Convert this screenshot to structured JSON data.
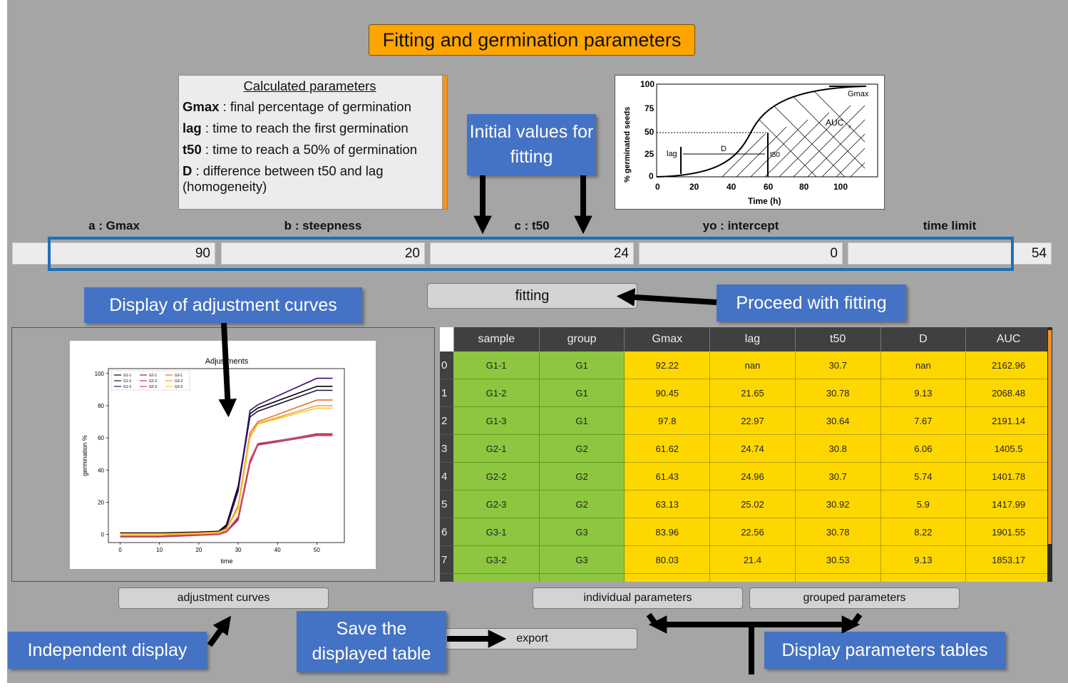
{
  "title": "Fitting and germination parameters",
  "info": {
    "heading": "Calculated parameters",
    "rows": [
      {
        "key": "Gmax",
        "desc": " : final percentage of germination"
      },
      {
        "key": "lag",
        "desc": " : time to reach the first germination"
      },
      {
        "key": "t50",
        "desc": " : time to reach a 50% of germination"
      },
      {
        "key": "D",
        "desc": " : difference between t50 and lag (homogeneity)"
      }
    ]
  },
  "reference_chart": {
    "ylabel": "% germinated seeds",
    "xlabel": "Time (h)",
    "yticks": [
      "0",
      "25",
      "50",
      "75",
      "100"
    ],
    "xticks": [
      "0",
      "20",
      "40",
      "60",
      "80",
      "100"
    ],
    "labels": {
      "gmax": "Gmax",
      "auc": "AUC",
      "auc_sub": "x",
      "lag": "lag",
      "d": "D",
      "t50": "t50"
    }
  },
  "callouts": {
    "initial": "Initial values for fitting",
    "display_curves": "Display of adjustment curves",
    "proceed": "Proceed with fitting",
    "independent": "Independent display",
    "save": "Save the displayed table",
    "display_tables": "Display parameters tables"
  },
  "params": {
    "labels": [
      "a : Gmax",
      "b : steepness",
      "c : t50",
      "yo : intercept",
      "time limit"
    ],
    "values": [
      "90",
      "20",
      "24",
      "0",
      "54"
    ]
  },
  "buttons": {
    "fitting": "fitting",
    "adjustment_curves": "adjustment curves",
    "individual": "individual parameters",
    "grouped": "grouped parameters",
    "export": "export"
  },
  "chart_data": {
    "type": "line",
    "title": "Adjustments",
    "xlabel": "time",
    "ylabel": "germination %",
    "xlim": [
      -3,
      57
    ],
    "ylim": [
      -5,
      103
    ],
    "xticks": [
      0,
      10,
      20,
      30,
      40,
      50
    ],
    "yticks": [
      0,
      20,
      40,
      60,
      80,
      100
    ],
    "legend": "top-left",
    "series": [
      {
        "name": "G1-1",
        "color": "#000000",
        "points": [
          [
            0,
            1
          ],
          [
            10,
            1
          ],
          [
            20,
            1.5
          ],
          [
            25,
            2
          ],
          [
            27,
            6
          ],
          [
            30,
            30
          ],
          [
            33,
            75
          ],
          [
            35,
            78.5
          ],
          [
            50,
            92
          ],
          [
            54,
            92
          ]
        ]
      },
      {
        "name": "G1-2",
        "color": "#1a1040",
        "points": [
          [
            0,
            0.5
          ],
          [
            10,
            0.5
          ],
          [
            20,
            1
          ],
          [
            25,
            1.5
          ],
          [
            27,
            5
          ],
          [
            30,
            28
          ],
          [
            33,
            73
          ],
          [
            35,
            76.5
          ],
          [
            50,
            89.5
          ],
          [
            54,
            89.5
          ]
        ]
      },
      {
        "name": "G1-3",
        "color": "#3b0f70",
        "points": [
          [
            0,
            0
          ],
          [
            10,
            0
          ],
          [
            20,
            0.5
          ],
          [
            25,
            1
          ],
          [
            27,
            4
          ],
          [
            30,
            27
          ],
          [
            33,
            77
          ],
          [
            35,
            80.5
          ],
          [
            50,
            97
          ],
          [
            54,
            97
          ]
        ]
      },
      {
        "name": "G2-1",
        "color": "#7a2370",
        "points": [
          [
            0,
            -1
          ],
          [
            10,
            -1
          ],
          [
            20,
            0
          ],
          [
            25,
            0.5
          ],
          [
            27,
            2
          ],
          [
            30,
            10
          ],
          [
            33,
            45
          ],
          [
            35,
            56
          ],
          [
            50,
            62.5
          ],
          [
            54,
            62.5
          ]
        ]
      },
      {
        "name": "G2-2",
        "color": "#b5367a",
        "points": [
          [
            0,
            -1.5
          ],
          [
            10,
            -1.5
          ],
          [
            20,
            -0.5
          ],
          [
            25,
            0
          ],
          [
            27,
            1.5
          ],
          [
            30,
            9
          ],
          [
            33,
            44
          ],
          [
            35,
            55.5
          ],
          [
            50,
            61.5
          ],
          [
            54,
            61.5
          ]
        ]
      },
      {
        "name": "G2-3",
        "color": "#d14f4f",
        "points": [
          [
            0,
            -1
          ],
          [
            10,
            -1
          ],
          [
            20,
            0
          ],
          [
            25,
            0.5
          ],
          [
            27,
            2
          ],
          [
            30,
            11
          ],
          [
            33,
            46
          ],
          [
            35,
            56.5
          ],
          [
            50,
            62
          ],
          [
            54,
            62
          ]
        ]
      },
      {
        "name": "G3-1",
        "color": "#e5702a",
        "points": [
          [
            0,
            0
          ],
          [
            10,
            0
          ],
          [
            20,
            0.5
          ],
          [
            25,
            1
          ],
          [
            27,
            3
          ],
          [
            30,
            18
          ],
          [
            33,
            63
          ],
          [
            35,
            70
          ],
          [
            50,
            83.5
          ],
          [
            54,
            83.5
          ]
        ]
      },
      {
        "name": "G3-2",
        "color": "#f0a030",
        "points": [
          [
            0,
            0.5
          ],
          [
            10,
            0.5
          ],
          [
            20,
            1
          ],
          [
            25,
            1.5
          ],
          [
            27,
            3.5
          ],
          [
            30,
            17
          ],
          [
            33,
            61
          ],
          [
            35,
            69
          ],
          [
            50,
            80
          ],
          [
            54,
            80
          ]
        ]
      },
      {
        "name": "G3-3",
        "color": "#f5c82a",
        "points": [
          [
            0,
            0
          ],
          [
            10,
            0
          ],
          [
            20,
            0.5
          ],
          [
            25,
            1
          ],
          [
            27,
            3
          ],
          [
            30,
            16
          ],
          [
            33,
            60
          ],
          [
            35,
            68.5
          ],
          [
            50,
            78.5
          ],
          [
            54,
            78.5
          ]
        ]
      }
    ]
  },
  "table": {
    "columns": [
      "sample",
      "group",
      "Gmax",
      "lag",
      "t50",
      "D",
      "AUC"
    ],
    "rows": [
      {
        "idx": "0",
        "cells": [
          "G1-1",
          "G1",
          "92.22",
          "nan",
          "30.7",
          "nan",
          "2162.96"
        ]
      },
      {
        "idx": "1",
        "cells": [
          "G1-2",
          "G1",
          "90.45",
          "21.65",
          "30.78",
          "9.13",
          "2068.48"
        ]
      },
      {
        "idx": "2",
        "cells": [
          "G1-3",
          "G1",
          "97.8",
          "22.97",
          "30.64",
          "7.67",
          "2191.14"
        ]
      },
      {
        "idx": "3",
        "cells": [
          "G2-1",
          "G2",
          "61.62",
          "24.74",
          "30.8",
          "6.06",
          "1405.5"
        ]
      },
      {
        "idx": "4",
        "cells": [
          "G2-2",
          "G2",
          "61.43",
          "24.96",
          "30.7",
          "5.74",
          "1401.78"
        ]
      },
      {
        "idx": "5",
        "cells": [
          "G2-3",
          "G2",
          "63.13",
          "25.02",
          "30.92",
          "5.9",
          "1417.99"
        ]
      },
      {
        "idx": "6",
        "cells": [
          "G3-1",
          "G3",
          "83.96",
          "22.56",
          "30.78",
          "8.22",
          "1901.55"
        ]
      },
      {
        "idx": "7",
        "cells": [
          "G3-2",
          "G3",
          "80.03",
          "21.4",
          "30.53",
          "9.13",
          "1853.17"
        ]
      },
      {
        "idx": "",
        "cells": [
          "",
          "",
          "",
          "",
          "",
          "",
          ""
        ]
      }
    ]
  }
}
